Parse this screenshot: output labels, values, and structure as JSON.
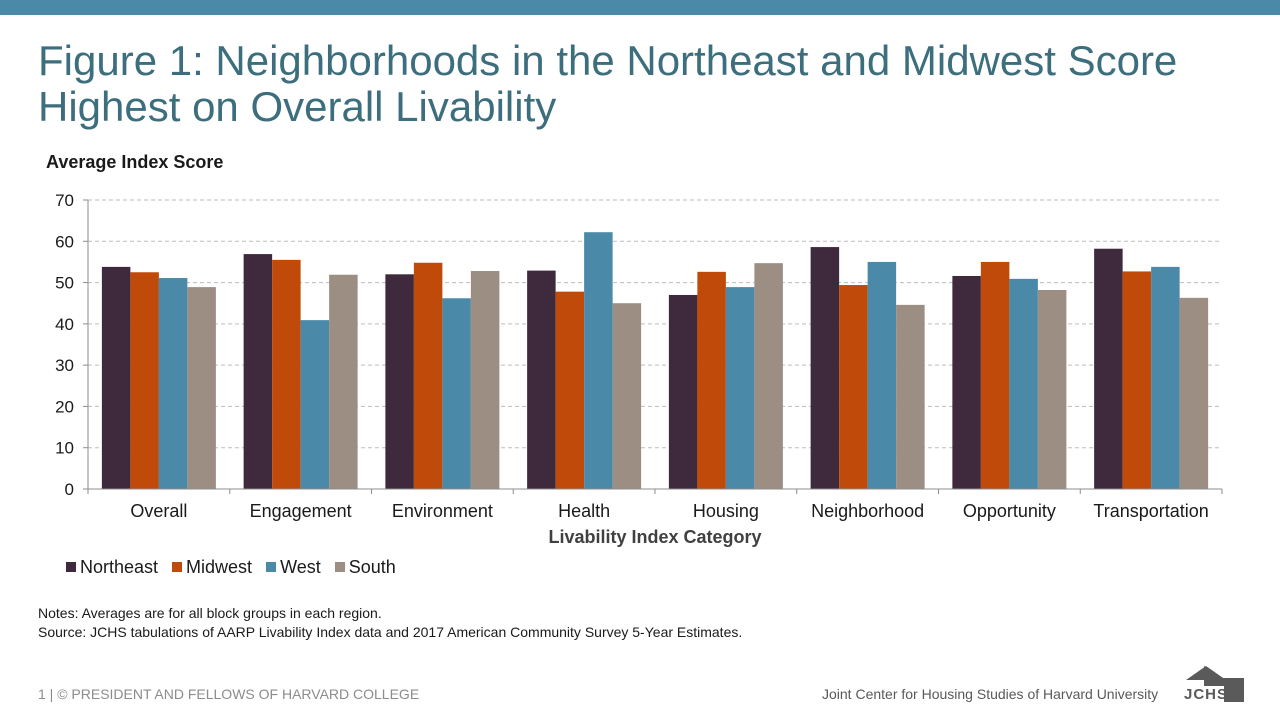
{
  "header": {
    "title_line1": "Figure 1: Neighborhoods in the Northeast and Midwest Score",
    "title_line2": "Highest on Overall Livability"
  },
  "chart_data": {
    "type": "bar",
    "title": "Figure 1: Neighborhoods in the Northeast and Midwest Score Highest on Overall Livability",
    "ylabel": "Average Index Score",
    "xlabel": "Livability Index Category",
    "ylim": [
      0,
      70
    ],
    "yticks": [
      0,
      10,
      20,
      30,
      40,
      50,
      60,
      70
    ],
    "grid": true,
    "legend_position": "bottom-left",
    "categories": [
      "Overall",
      "Engagement",
      "Environment",
      "Health",
      "Housing",
      "Neighborhood",
      "Opportunity",
      "Transportation"
    ],
    "series": [
      {
        "name": "Northeast",
        "color": "#3f2a3d",
        "values": [
          53.8,
          56.9,
          52.0,
          52.9,
          47.0,
          58.6,
          51.6,
          58.2
        ]
      },
      {
        "name": "Midwest",
        "color": "#c04a0a",
        "values": [
          52.5,
          55.5,
          54.8,
          47.8,
          52.6,
          49.4,
          55.0,
          52.7
        ]
      },
      {
        "name": "West",
        "color": "#4a8aa8",
        "values": [
          51.1,
          40.9,
          46.2,
          62.2,
          48.9,
          55.0,
          50.9,
          53.8
        ]
      },
      {
        "name": "South",
        "color": "#9c8e83",
        "values": [
          48.9,
          51.9,
          52.8,
          45.0,
          54.7,
          44.6,
          48.2,
          46.3
        ]
      }
    ]
  },
  "notes": {
    "line1": "Notes: Averages are for all block groups in each region.",
    "line2": "Source: JCHS tabulations of AARP Livability Index data and 2017 American Community Survey 5-Year Estimates."
  },
  "footer": {
    "left": "1 | © PRESIDENT AND FELLOWS OF HARVARD COLLEGE",
    "right": "Joint Center for Housing Studies of Harvard University",
    "logo_text": "JCHS"
  },
  "colors": {
    "accent": "#4a8aa8",
    "title": "#3c6e7e"
  }
}
